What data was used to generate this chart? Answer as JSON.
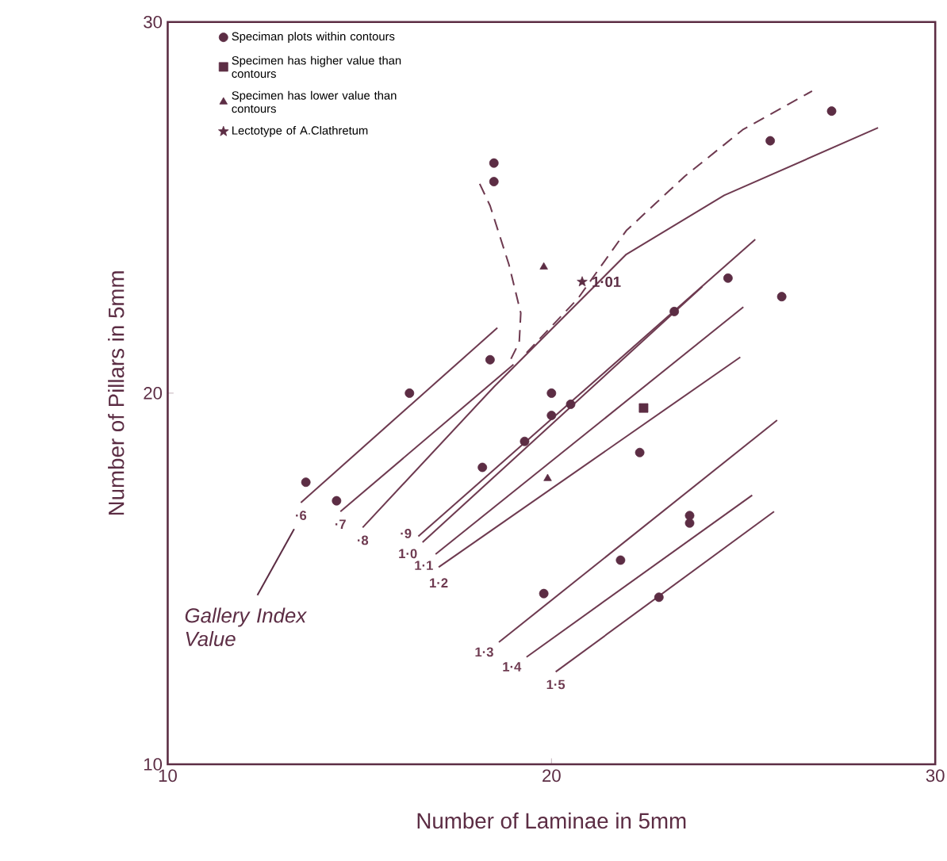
{
  "chart_data": {
    "type": "scatter",
    "xlabel": "Number of Laminae in 5mm",
    "ylabel": "Number of Pillars in 5mm",
    "xlim": [
      10,
      30
    ],
    "ylim": [
      10,
      30
    ],
    "xticks": [
      10,
      20,
      30
    ],
    "yticks": [
      10,
      20,
      30
    ],
    "legend": "top left",
    "series": [
      {
        "name": "Speciman plots within contours",
        "marker": "circle",
        "color": "#5c2d44",
        "x": [
          18.5,
          18.5,
          27.3,
          25.7,
          24.6,
          26.0,
          23.2,
          18.4,
          20.0,
          20.5,
          20.0,
          16.3,
          13.6,
          14.4,
          18.2,
          19.3,
          22.3,
          23.6,
          23.6,
          21.8,
          19.8,
          22.8
        ],
        "values": [
          26.2,
          25.7,
          27.6,
          26.8,
          23.1,
          22.6,
          22.2,
          20.9,
          20.0,
          19.7,
          19.4,
          20.0,
          17.6,
          17.1,
          18.0,
          18.7,
          18.4,
          16.7,
          16.5,
          15.5,
          14.6,
          14.5
        ]
      },
      {
        "name": "Specimen has higher value than contours",
        "marker": "square",
        "color": "#5c2d44",
        "x": [
          22.4
        ],
        "values": [
          19.6
        ]
      },
      {
        "name": "Specimen has lower value than contours",
        "marker": "triangle",
        "color": "#5c2d44",
        "x": [
          19.8,
          19.9
        ],
        "values": [
          23.4,
          17.7
        ]
      },
      {
        "name": "Lectotype of A.Clathretum",
        "marker": "star",
        "color": "#5c2d44",
        "x": [
          20.8
        ],
        "values": [
          23.0
        ]
      },
      {
        "name": "·6",
        "type": "line",
        "line_style": "solid",
        "color": "#6e3a50",
        "x": [
          13.47,
          18.59
        ],
        "values": [
          17.05,
          21.76
        ]
      },
      {
        "name": "·7",
        "type": "line",
        "line_style": "solid",
        "color": "#6e3a50",
        "x": [
          14.5,
          19.01
        ],
        "values": [
          16.81,
          20.77
        ]
      },
      {
        "name": "·8",
        "type": "line",
        "line_style": "solid",
        "color": "#6e3a50",
        "x": [
          15.08,
          18.51,
          21.95,
          24.5,
          28.51
        ],
        "values": [
          16.38,
          20.18,
          23.74,
          25.33,
          27.15
        ]
      },
      {
        "name": "·9",
        "type": "line",
        "line_style": "solid",
        "color": "#6e3a50",
        "x": [
          16.53,
          25.31
        ],
        "values": [
          16.14,
          24.14
        ]
      },
      {
        "name": "1·0",
        "type": "line",
        "line_style": "solid",
        "color": "#6e3a50",
        "x": [
          16.64,
          23.93
        ],
        "values": [
          15.98,
          22.87
        ]
      },
      {
        "name": "1·1",
        "type": "line",
        "line_style": "solid",
        "color": "#6e3a50",
        "x": [
          16.98,
          25.0
        ],
        "values": [
          15.66,
          22.32
        ]
      },
      {
        "name": "1·2",
        "type": "line",
        "line_style": "solid",
        "color": "#6e3a50",
        "x": [
          17.06,
          24.92
        ],
        "values": [
          15.31,
          20.97
        ]
      },
      {
        "name": "1·3",
        "type": "line",
        "line_style": "solid",
        "color": "#6e3a50",
        "x": [
          18.63,
          25.88
        ],
        "values": [
          13.29,
          19.27
        ]
      },
      {
        "name": "1·4",
        "type": "line",
        "line_style": "solid",
        "color": "#6e3a50",
        "x": [
          19.35,
          25.23
        ],
        "values": [
          12.89,
          17.25
        ]
      },
      {
        "name": "1·5",
        "type": "line",
        "line_style": "solid",
        "color": "#6e3a50",
        "x": [
          20.11,
          25.8
        ],
        "values": [
          12.49,
          16.81
        ]
      },
      {
        "type": "line",
        "line_style": "dashed",
        "color": "#6e3a50",
        "x": [
          18.13,
          18.4,
          18.89,
          19.2,
          19.16,
          18.89
        ],
        "values": [
          25.64,
          25.05,
          23.47,
          22.16,
          21.37,
          20.81
        ]
      },
      {
        "type": "line",
        "line_style": "dashed",
        "color": "#6e3a50",
        "x": [
          19.35,
          20.69,
          21.95,
          23.47,
          25.0,
          26.79
        ],
        "values": [
          21.09,
          22.55,
          24.38,
          25.84,
          27.11,
          28.14
        ]
      }
    ],
    "annotations": [
      {
        "text": "1·01",
        "x": 20.8,
        "y": 23.0
      },
      "Gallery Index Value"
    ]
  }
}
